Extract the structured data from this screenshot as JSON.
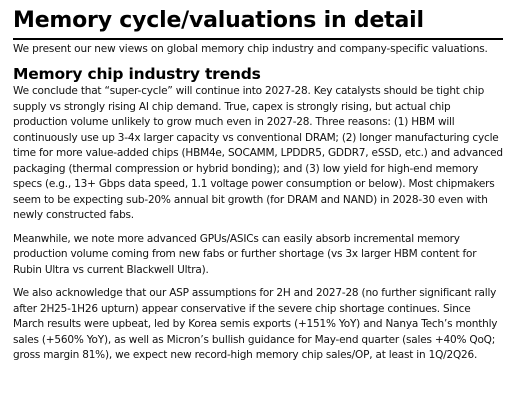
{
  "document": {
    "title": "Memory cycle/valuations in detail",
    "subtitle": "We present our new views on global memory chip industry and company-specific valuations.",
    "section": {
      "heading": "Memory chip industry trends",
      "paragraphs": [
        "We conclude that “super-cycle” will continue into 2027-28. Key catalysts should be tight chip supply vs strongly rising AI chip demand. True, capex is strongly rising, but actual chip production volume unlikely to grow much even in 2027-28. Three reasons: (1) HBM will continuously use up 3-4x larger capacity vs conventional DRAM; (2) longer manufacturing cycle time for more value-added chips (HBM4e, SOCAMM, LPDDR5, GDDR7, eSSD, etc.) and advanced packaging (thermal compression or hybrid bonding); and (3) low yield for high-end memory specs (e.g., 13+ Gbps data speed, 1.1 voltage power consumption or below). Most chipmakers seem to be expecting sub-20% annual bit growth (for DRAM and NAND) in 2028-30 even with newly constructed fabs.",
        "Meanwhile, we note more advanced GPUs/ASICs can easily absorb incremental memory production volume coming from new fabs or further shortage (vs 3x larger HBM content for Rubin Ultra vs current Blackwell Ultra).",
        "We also acknowledge that our ASP assumptions for 2H and 2027-28 (no further significant rally after 2H25-1H26 upturn) appear conservative if the severe chip shortage continues. Since March results were upbeat, led by Korea semis exports (+151% YoY) and Nanya Tech’s monthly sales (+560% YoY), as well as Micron’s bullish guidance for May-end quarter (sales +40% QoQ; gross margin 81%), we expect new record-high memory chip sales/OP, at least in 1Q/2Q26."
      ]
    }
  }
}
